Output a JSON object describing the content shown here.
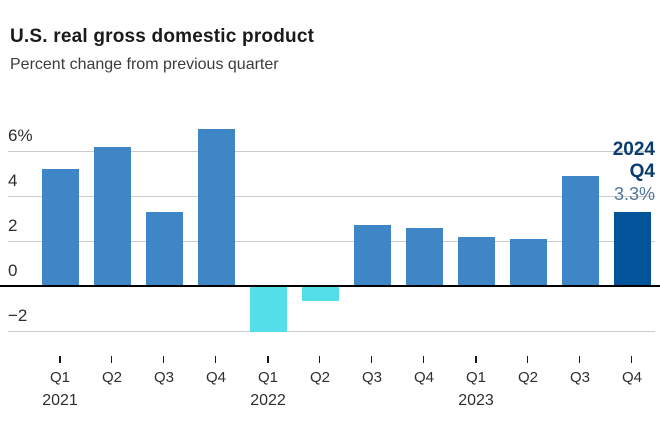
{
  "header": {
    "title": "U.S. real gross domestic product",
    "subtitle": "Percent change from previous quarter"
  },
  "annotation": {
    "year": "2024",
    "quarter": "Q4",
    "value_label": "3.3%"
  },
  "colors": {
    "positive_bar": "#3e86c6",
    "negative_bar": "#54dee9",
    "highlight_bar": "#02549a",
    "annotation_text": "#0a3c6e",
    "annotation_value": "#54749c",
    "gridline": "#cccccc",
    "zero_line": "#000000",
    "axis_text": "#2e2e2e",
    "tick_mark": "#1a1a1a"
  },
  "chart_data": {
    "type": "bar",
    "title": "U.S. real gross domestic product",
    "subtitle": "Percent change from previous quarter",
    "unit": "percent change from previous quarter",
    "categories": [
      "Q1 2021",
      "Q2 2021",
      "Q3 2021",
      "Q4 2021",
      "Q1 2022",
      "Q2 2022",
      "Q3 2022",
      "Q4 2022",
      "Q1 2023",
      "Q2 2023",
      "Q3 2023",
      "Q4"
    ],
    "values": [
      5.2,
      6.2,
      3.3,
      7.0,
      -2.0,
      -0.6,
      2.7,
      2.6,
      2.2,
      2.1,
      4.9,
      3.3
    ],
    "bar_colors": [
      "positive_bar",
      "positive_bar",
      "positive_bar",
      "positive_bar",
      "negative_bar",
      "negative_bar",
      "positive_bar",
      "positive_bar",
      "positive_bar",
      "positive_bar",
      "positive_bar",
      "highlight_bar"
    ],
    "annotation_label": "2024 Q4 3.3%",
    "grid": "horizontal",
    "legend": "none",
    "ylim": [
      -2.8,
      7.6
    ],
    "y_axis": {
      "ticks": [
        {
          "value": 6,
          "label": "6%"
        },
        {
          "value": 4,
          "label": "4"
        },
        {
          "value": 2,
          "label": "2"
        },
        {
          "value": 0,
          "label": "0"
        },
        {
          "value": -2,
          "label": "−2"
        }
      ]
    },
    "x_axis": {
      "quarter_labels": [
        "Q1",
        "Q2",
        "Q3",
        "Q4",
        "Q1",
        "Q2",
        "Q3",
        "Q4",
        "Q1",
        "Q2",
        "Q3",
        "Q4"
      ],
      "year_labels": [
        {
          "label": "2021",
          "index": 0
        },
        {
          "label": "2022",
          "index": 4
        },
        {
          "label": "2023",
          "index": 8
        }
      ]
    }
  }
}
